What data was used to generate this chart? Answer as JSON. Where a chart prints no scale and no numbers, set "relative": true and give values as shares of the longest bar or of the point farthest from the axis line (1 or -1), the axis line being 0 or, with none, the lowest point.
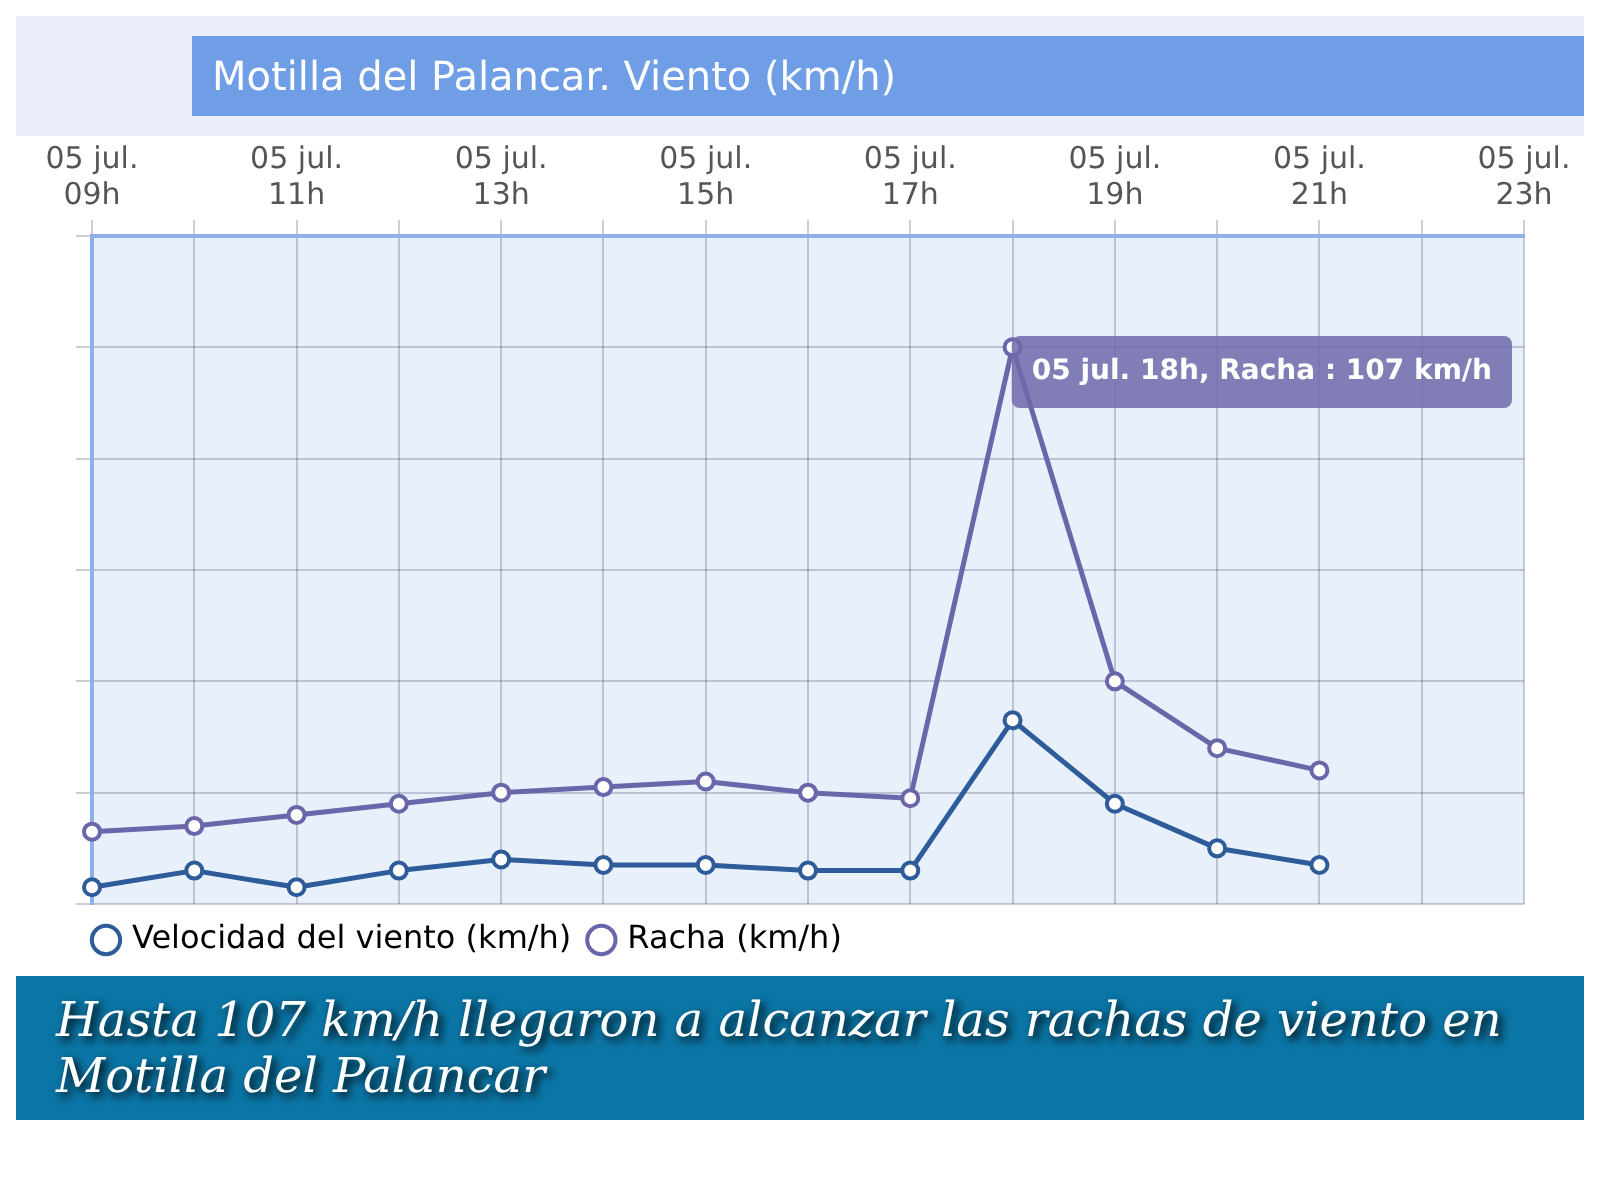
{
  "chart_data": {
    "type": "line",
    "title": "Motilla del Palancar. Viento (km/h)",
    "categories": [
      "05 jul. 09h",
      null,
      "05 jul. 11h",
      null,
      "05 jul. 13h",
      null,
      "05 jul. 15h",
      null,
      "05 jul. 17h",
      null,
      "05 jul. 19h",
      null,
      "05 jul. 21h",
      null,
      "05 jul. 23h"
    ],
    "relative": true,
    "series": [
      {
        "name": "Velocidad del viento (km/h)",
        "color": "#2e5b9a",
        "values": [
          0.03,
          0.06,
          0.03,
          0.06,
          0.08,
          0.07,
          0.07,
          0.06,
          0.06,
          0.33,
          0.18,
          0.1,
          0.07,
          null,
          null
        ]
      },
      {
        "name": "Racha (km/h)",
        "color": "#6a66aa",
        "values": [
          0.13,
          0.14,
          0.16,
          0.18,
          0.2,
          0.21,
          0.22,
          0.2,
          0.19,
          1,
          0.4,
          0.28,
          0.24,
          null,
          null
        ]
      }
    ],
    "annotations": [
      "05 jul. 18h, Racha : 107 km/h",
      "Hasta 107 km/h llegaron a alcanzar las rachas de viento en Motilla del Palancar"
    ],
    "grid": true,
    "legend": "bottom",
    "marker": "circle",
    "line_style": "solid"
  }
}
